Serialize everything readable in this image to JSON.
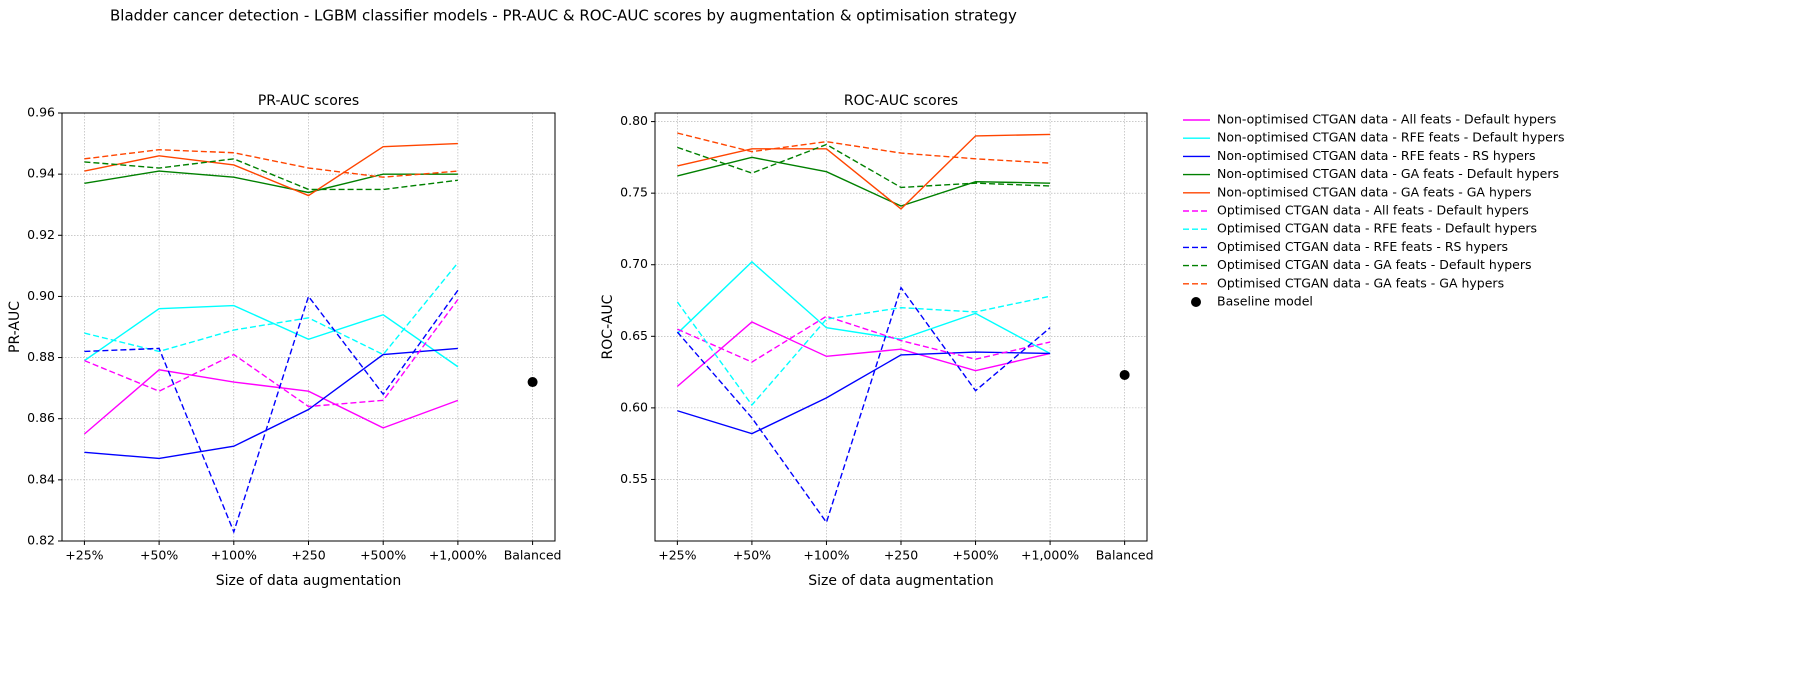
{
  "title": "Bladder cancer detection - LGBM classifier models - PR-AUC & ROC-AUC scores by augmentation & optimisation strategy",
  "chart_data": [
    {
      "type": "line",
      "title": "PR-AUC scores",
      "xlabel": "Size of data augmentation",
      "ylabel": "PR-AUC",
      "categories": [
        "+25%",
        "+50%",
        "+100%",
        "+250",
        "+500%",
        "+1,000%",
        "Balanced"
      ],
      "ylim": [
        0.82,
        0.96
      ],
      "yticks": [
        0.82,
        0.84,
        0.86,
        0.88,
        {
          "value": 0.9,
          "label": "0.90"
        },
        0.92,
        0.94,
        0.96
      ],
      "grid": true,
      "series": [
        {
          "name": "Non-optimised CTGAN data - All feats - Default hypers",
          "color": "#ff00ff",
          "linestyle": "solid",
          "values": [
            0.855,
            0.876,
            0.872,
            0.869,
            0.857,
            0.866,
            null
          ]
        },
        {
          "name": "Non-optimised CTGAN data - RFE feats - Default hypers",
          "color": "#00ffff",
          "linestyle": "solid",
          "values": [
            0.879,
            0.896,
            0.897,
            0.886,
            0.894,
            0.877,
            null
          ]
        },
        {
          "name": "Non-optimised CTGAN data - RFE feats - RS hypers",
          "color": "#0000ff",
          "linestyle": "solid",
          "values": [
            0.849,
            0.847,
            0.851,
            0.863,
            0.881,
            0.883,
            null
          ]
        },
        {
          "name": "Non-optimised CTGAN data - GA feats - Default hypers",
          "color": "#008000",
          "linestyle": "solid",
          "values": [
            0.937,
            0.941,
            0.939,
            0.934,
            0.94,
            0.94,
            null
          ]
        },
        {
          "name": "Non-optimised CTGAN data - GA feats - GA hypers",
          "color": "#ff4500",
          "linestyle": "solid",
          "values": [
            0.941,
            0.946,
            0.943,
            0.933,
            0.949,
            0.95,
            null
          ]
        },
        {
          "name": "Optimised CTGAN data - All feats - Default hypers",
          "color": "#ff00ff",
          "linestyle": "dashed",
          "values": [
            0.879,
            0.869,
            0.881,
            0.864,
            0.866,
            0.899,
            null
          ]
        },
        {
          "name": "Optimised CTGAN data - RFE feats - Default hypers",
          "color": "#00ffff",
          "linestyle": "dashed",
          "values": [
            0.888,
            0.882,
            0.889,
            0.893,
            0.881,
            0.911,
            null
          ]
        },
        {
          "name": "Optimised CTGAN data - RFE feats - RS hypers",
          "color": "#0000ff",
          "linestyle": "dashed",
          "values": [
            0.882,
            0.883,
            0.823,
            0.9,
            0.868,
            0.902,
            null
          ]
        },
        {
          "name": "Optimised CTGAN data - GA feats - Default hypers",
          "color": "#008000",
          "linestyle": "dashed",
          "values": [
            0.944,
            0.942,
            0.945,
            0.935,
            0.935,
            0.938,
            null
          ]
        },
        {
          "name": "Optimised CTGAN data -  GA feats - GA hypers",
          "color": "#ff4500",
          "linestyle": "dashed",
          "values": [
            0.945,
            0.948,
            0.947,
            0.942,
            0.939,
            0.941,
            null
          ]
        }
      ],
      "baseline": {
        "name": "Baseline model",
        "color": "#000000",
        "value": 0.872
      }
    },
    {
      "type": "line",
      "title": "ROC-AUC scores",
      "xlabel": "Size of data augmentation",
      "ylabel": "ROC-AUC",
      "categories": [
        "+25%",
        "+50%",
        "+100%",
        "+250",
        "+500%",
        "+1,000%",
        "Balanced"
      ],
      "ylim": [
        0.507,
        0.806
      ],
      "yticks": [
        0.55,
        {
          "value": 0.6,
          "label": "0.60"
        },
        0.65,
        {
          "value": 0.7,
          "label": "0.70"
        },
        0.75,
        {
          "value": 0.8,
          "label": "0.80"
        }
      ],
      "grid": true,
      "series": [
        {
          "color": "#ff00ff",
          "linestyle": "solid",
          "values": [
            0.615,
            0.66,
            0.636,
            0.641,
            0.626,
            0.638,
            null
          ]
        },
        {
          "color": "#00ffff",
          "linestyle": "solid",
          "values": [
            0.652,
            0.702,
            0.656,
            0.648,
            0.666,
            0.638,
            null
          ]
        },
        {
          "color": "#0000ff",
          "linestyle": "solid",
          "values": [
            0.598,
            0.582,
            0.607,
            0.637,
            0.639,
            0.638,
            null
          ]
        },
        {
          "color": "#008000",
          "linestyle": "solid",
          "values": [
            0.762,
            0.775,
            0.765,
            0.741,
            0.758,
            0.757,
            null
          ]
        },
        {
          "color": "#ff4500",
          "linestyle": "solid",
          "values": [
            0.769,
            0.781,
            0.781,
            0.739,
            0.79,
            0.791,
            null
          ]
        },
        {
          "color": "#ff00ff",
          "linestyle": "dashed",
          "values": [
            0.655,
            0.632,
            0.664,
            0.647,
            0.634,
            0.646,
            null
          ]
        },
        {
          "color": "#00ffff",
          "linestyle": "dashed",
          "values": [
            0.674,
            0.602,
            0.662,
            0.67,
            0.667,
            0.678,
            null
          ]
        },
        {
          "color": "#0000ff",
          "linestyle": "dashed",
          "values": [
            0.653,
            0.593,
            0.52,
            0.684,
            0.612,
            0.656,
            null
          ]
        },
        {
          "color": "#008000",
          "linestyle": "dashed",
          "values": [
            0.782,
            0.764,
            0.784,
            0.754,
            0.757,
            0.755,
            null
          ]
        },
        {
          "color": "#ff4500",
          "linestyle": "dashed",
          "values": [
            0.792,
            0.779,
            0.786,
            0.778,
            0.774,
            0.771,
            null
          ]
        }
      ],
      "baseline": {
        "color": "#000000",
        "value": 0.623
      }
    }
  ]
}
